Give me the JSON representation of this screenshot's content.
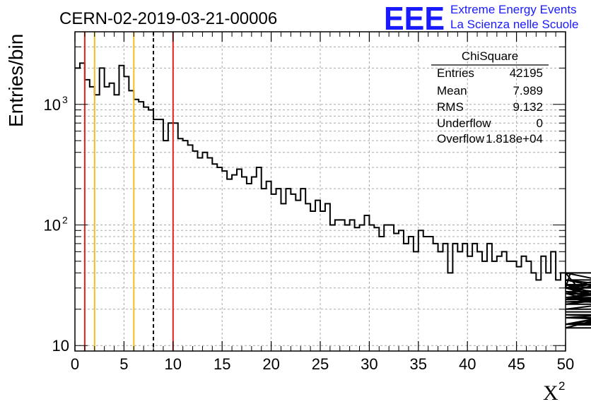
{
  "chart_data": {
    "type": "histogram",
    "title": "CERN-02-2019-03-21-00006",
    "xlabel": "X",
    "xlabel_superscript": "2",
    "ylabel": "Entries/bin",
    "xlim": [
      0,
      50
    ],
    "ylim": [
      9,
      4000
    ],
    "yscale": "log",
    "grid": true,
    "bin_width": 0.5,
    "x_ticks": [
      0,
      5,
      10,
      15,
      20,
      25,
      30,
      35,
      40,
      45,
      50
    ],
    "x_tick_labels": [
      "0",
      "5",
      "10",
      "15",
      "20",
      "25",
      "30",
      "35",
      "40",
      "45",
      "50"
    ],
    "y_ticks": [
      {
        "value": 10,
        "base": "10",
        "exp": ""
      },
      {
        "value": 100,
        "base": "10",
        "exp": "2"
      },
      {
        "value": 1000,
        "base": "10",
        "exp": "3"
      }
    ],
    "values": [
      2000,
      2200,
      1600,
      1400,
      1200,
      2000,
      1400,
      1500,
      1200,
      2100,
      1700,
      1300,
      1100,
      1050,
      950,
      900,
      750,
      750,
      500,
      700,
      700,
      520,
      500,
      460,
      410,
      360,
      400,
      360,
      320,
      300,
      280,
      240,
      260,
      290,
      250,
      220,
      250,
      300,
      200,
      230,
      180,
      200,
      150,
      200,
      180,
      160,
      200,
      150,
      130,
      160,
      130,
      150,
      100,
      110,
      110,
      100,
      110,
      95,
      100,
      120,
      100,
      95,
      80,
      100,
      100,
      85,
      90,
      70,
      80,
      60,
      90,
      80,
      80,
      70,
      60,
      70,
      40,
      70,
      60,
      70,
      55,
      70,
      60,
      50,
      70,
      50,
      55,
      60,
      50,
      50,
      45,
      55,
      50,
      40,
      35,
      55,
      40,
      60,
      35,
      40,
      30,
      40,
      32,
      30,
      30,
      32,
      30,
      35,
      32,
      25,
      28,
      24,
      35,
      27,
      40,
      30,
      25,
      22,
      27,
      25,
      23,
      25,
      30,
      17,
      20,
      20,
      27,
      15,
      15,
      25,
      15,
      14,
      30,
      15,
      15,
      25,
      17,
      15,
      18,
      15,
      19
    ],
    "vertical_lines": [
      {
        "x": 1,
        "color": "#e31e1e",
        "style": "solid"
      },
      {
        "x": 2,
        "color": "#f5bf1b",
        "style": "solid"
      },
      {
        "x": 6,
        "color": "#f5bf1b",
        "style": "solid"
      },
      {
        "x": 8,
        "color": "#000000",
        "style": "dashed"
      },
      {
        "x": 10,
        "color": "#e31e1e",
        "style": "solid"
      }
    ],
    "stats": {
      "title": "ChiSquare",
      "rows": [
        {
          "label": "Entries",
          "value": "42195"
        },
        {
          "label": "Mean",
          "value": "7.989"
        },
        {
          "label": "RMS",
          "value": "9.132"
        },
        {
          "label": "Underflow",
          "value": "0"
        },
        {
          "label": "Overflow",
          "value": "1.818e+04"
        }
      ]
    },
    "legend_position": "top-right"
  },
  "logo": {
    "text": "EEE",
    "line1": "Extreme Energy Events",
    "line2": "La Scienza nelle Scuole",
    "color": "#1a1aff"
  }
}
